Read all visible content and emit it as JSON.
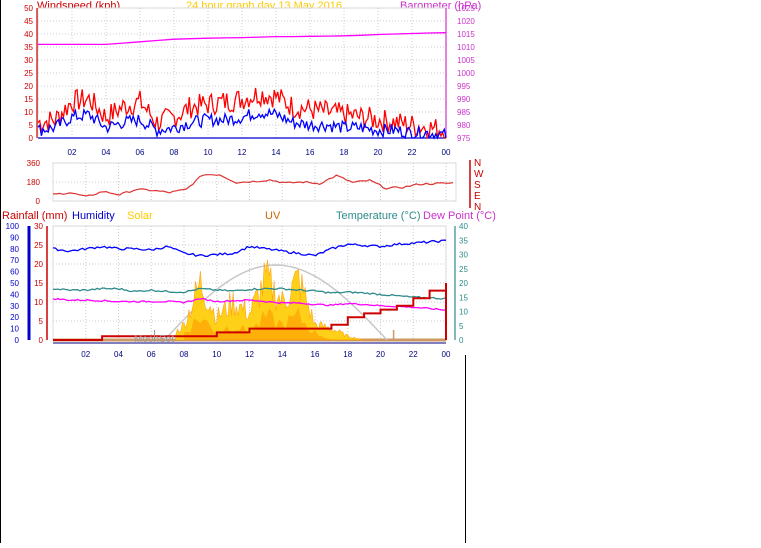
{
  "header": {
    "left_label": "Windspeed (kph)",
    "center_label": "24 hour graph day   13 May 2016",
    "right_label": "Barometer (hPa)"
  },
  "colors": {
    "gust": "#ff0000",
    "avg_wind": "#0000ff",
    "barometer": "#ff00ff",
    "direction": "#dd3333",
    "humidity": "#0000ff",
    "temperature": "#2e8b8b",
    "dew_point": "#ff00ff",
    "rainfall": "#cc0000",
    "solar": "#ffcc00",
    "uv": "#cc6600",
    "sun_curve": "#c8c8c8",
    "grid": "#cccccc",
    "time_axis": "#000080"
  },
  "time_ticks": [
    "02",
    "04",
    "06",
    "08",
    "10",
    "12",
    "14",
    "16",
    "18",
    "20",
    "22",
    "00"
  ],
  "chart_data": [
    {
      "type": "line",
      "panel": "wind",
      "title": "Windspeed (kph)",
      "right_title": "Barometer (hPa)",
      "xlabel": "",
      "ylabel": "Windspeed (kph)",
      "ylim": [
        0,
        50
      ],
      "y_ticks": [
        "0",
        "5",
        "10",
        "15",
        "20",
        "25",
        "30",
        "35",
        "40",
        "45",
        "50"
      ],
      "y2lim": [
        975,
        1025
      ],
      "y2_ticks": [
        "975",
        "980",
        "985",
        "990",
        "995",
        "1000",
        "1005",
        "1010",
        "1015",
        "1020",
        "1025"
      ],
      "x_hours": [
        0,
        1,
        2,
        3,
        4,
        5,
        6,
        7,
        8,
        9,
        10,
        11,
        12,
        13,
        14,
        15,
        16,
        17,
        18,
        19,
        20,
        21,
        22,
        23,
        24
      ],
      "series": [
        {
          "name": "Windspeed (kph)",
          "role": "gust",
          "values": [
            6,
            7,
            14,
            15,
            8,
            12,
            14,
            6,
            8,
            12,
            13,
            14,
            15,
            17,
            16,
            12,
            11,
            10,
            9,
            8,
            7,
            6,
            5,
            4,
            3
          ]
        },
        {
          "name": "",
          "role": "average",
          "values": [
            3,
            4,
            8,
            9,
            4,
            6,
            7,
            3,
            4,
            6,
            7,
            7,
            8,
            10,
            9,
            6,
            5,
            5,
            4,
            4,
            3,
            3,
            2,
            2,
            1
          ]
        },
        {
          "name": "Barometer (hPa)",
          "role": "pressure",
          "values": [
            1011,
            1011,
            1011,
            1011,
            1011,
            1011.5,
            1012,
            1012.5,
            1013,
            1013.2,
            1013.4,
            1013.5,
            1013.6,
            1013.8,
            1014,
            1014,
            1014.1,
            1014.2,
            1014.3,
            1014.5,
            1014.8,
            1015,
            1015.2,
            1015.4,
            1015.5
          ]
        }
      ]
    },
    {
      "type": "line",
      "panel": "direction",
      "xlabel": "",
      "ylabel": "",
      "ylim": [
        0,
        360
      ],
      "y_ticks": [
        "0",
        "180",
        "360"
      ],
      "compass_labels": [
        "N",
        "W",
        "S",
        "E",
        "N"
      ],
      "x_hours": [
        0,
        1,
        2,
        3,
        4,
        5,
        6,
        7,
        8,
        9,
        10,
        11,
        12,
        13,
        14,
        15,
        16,
        17,
        18,
        19,
        20,
        21,
        22,
        23,
        24
      ],
      "series": [
        {
          "name": "",
          "values": [
            60,
            80,
            40,
            90,
            60,
            110,
            100,
            80,
            110,
            250,
            250,
            175,
            185,
            200,
            170,
            180,
            165,
            240,
            175,
            195,
            120,
            130,
            160,
            165,
            170
          ]
        }
      ]
    },
    {
      "type": "area",
      "panel": "weather",
      "legend": [
        "Rainfall (mm)",
        "Humidity",
        "Solar",
        "UV",
        "Temperature (°C)",
        "Dew Point (°C)"
      ],
      "xlabel": "",
      "ylabel": "Rainfall (mm)",
      "rain_ylim": [
        0,
        30
      ],
      "rain_ticks": [
        "0",
        "5",
        "10",
        "15",
        "20",
        "25",
        "30"
      ],
      "humidity_ylim": [
        0,
        100
      ],
      "humidity_ticks": [
        "0",
        "10",
        "20",
        "30",
        "40",
        "50",
        "60",
        "70",
        "80",
        "90",
        "100"
      ],
      "temp_ylim": [
        0,
        40
      ],
      "temp_ticks": [
        "0",
        "5",
        "10",
        "15",
        "20",
        "25",
        "30",
        "35",
        "40"
      ],
      "moon_label": "MoonSet",
      "x_hours": [
        0,
        1,
        2,
        3,
        4,
        5,
        6,
        7,
        8,
        9,
        10,
        11,
        12,
        13,
        14,
        15,
        16,
        17,
        18,
        19,
        20,
        21,
        22,
        23,
        24
      ],
      "series": [
        {
          "name": "Humidity",
          "values": [
            80,
            78,
            80,
            82,
            80,
            80,
            79,
            82,
            76,
            74,
            75,
            76,
            82,
            80,
            78,
            76,
            74,
            80,
            84,
            83,
            82,
            84,
            85,
            86,
            87
          ]
        },
        {
          "name": "Temperature (°C)",
          "values": [
            18,
            17.5,
            17.5,
            18,
            18,
            17,
            17.5,
            17,
            16.8,
            18,
            17.5,
            17.2,
            17.8,
            18,
            18,
            17.5,
            17.2,
            16.5,
            16.8,
            16.5,
            16,
            15.5,
            15,
            14.8,
            14.5
          ]
        },
        {
          "name": "Dew Point (°C)",
          "values": [
            14.5,
            14,
            14,
            13.8,
            13.5,
            13.5,
            13.5,
            13.5,
            13.2,
            14.5,
            13.5,
            13.8,
            14,
            13.5,
            13,
            13,
            12.5,
            12.2,
            12.8,
            12.5,
            12,
            11.8,
            11.5,
            11,
            10.5
          ]
        },
        {
          "name": "Rainfall (mm)",
          "values": [
            0,
            0,
            0,
            1,
            1,
            1,
            1,
            1,
            1,
            1,
            2,
            2,
            3,
            3,
            3,
            3,
            3,
            4,
            6,
            7,
            8,
            9,
            11,
            13,
            15
          ]
        },
        {
          "name": "Solar",
          "values": [
            0,
            0,
            0,
            0,
            0,
            0,
            0,
            0,
            4,
            15,
            6,
            10,
            7,
            16,
            10,
            16,
            4,
            3,
            1,
            0,
            0,
            0,
            0,
            0,
            0
          ]
        },
        {
          "name": "UV",
          "values": [
            0,
            0,
            0,
            0,
            0,
            0,
            0,
            0,
            1,
            3,
            1,
            2,
            1,
            3,
            2,
            3,
            1,
            0,
            0,
            0,
            0,
            0,
            0,
            0,
            0
          ]
        }
      ]
    }
  ]
}
